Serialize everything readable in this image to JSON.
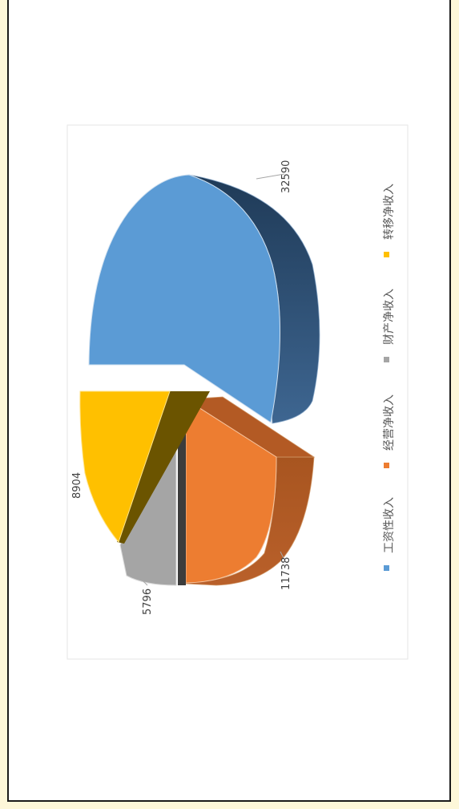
{
  "chart_data": {
    "type": "pie",
    "style": "3d-exploded",
    "orientation": "rotated-90-clockwise",
    "categories": [
      "工资性收入",
      "经营净收入",
      "财产净收入",
      "转移净收入"
    ],
    "values": [
      32590,
      11738,
      5796,
      8904
    ],
    "colors": [
      "#5b9bd5",
      "#ed7d31",
      "#a5a5a5",
      "#ffc000"
    ],
    "data_labels": [
      "32590",
      "11738",
      "5796",
      "8904"
    ],
    "legend_position": "bottom"
  }
}
